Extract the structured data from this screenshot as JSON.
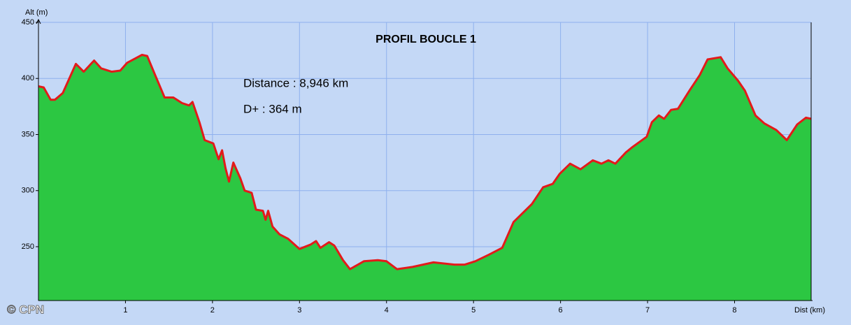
{
  "chart_data": {
    "type": "area",
    "title": "PROFIL BOUCLE 1",
    "y_label": "Alt (m)",
    "x_label": "Dist (km)",
    "annotations": [
      "Distance : 8,946 km",
      "D+ : 364 m"
    ],
    "watermark": "© CPN",
    "x": [
      0,
      0.06,
      0.14,
      0.19,
      0.28,
      0.43,
      0.52,
      0.64,
      0.72,
      0.84,
      0.94,
      1.02,
      1.19,
      1.25,
      1.33,
      1.45,
      1.55,
      1.65,
      1.73,
      1.77,
      1.85,
      1.91,
      2.01,
      2.07,
      2.11,
      2.15,
      2.19,
      2.24,
      2.32,
      2.37,
      2.45,
      2.5,
      2.58,
      2.61,
      2.64,
      2.69,
      2.77,
      2.87,
      3.0,
      3.13,
      3.19,
      3.24,
      3.34,
      3.4,
      3.5,
      3.58,
      3.74,
      3.9,
      4.0,
      4.12,
      4.3,
      4.54,
      4.78,
      4.9,
      5.02,
      5.18,
      5.33,
      5.46,
      5.67,
      5.8,
      5.91,
      5.99,
      6.11,
      6.23,
      6.37,
      6.47,
      6.55,
      6.63,
      6.75,
      6.83,
      6.99,
      7.05,
      7.13,
      7.19,
      7.27,
      7.35,
      7.48,
      7.6,
      7.69,
      7.84,
      7.92,
      8.04,
      8.12,
      8.24,
      8.34,
      8.48,
      8.6,
      8.72,
      8.82,
      8.88
    ],
    "values": [
      393,
      392,
      381,
      381,
      387,
      413,
      406,
      416,
      409,
      406,
      407,
      414,
      421,
      420,
      405,
      383,
      383,
      378,
      376,
      379,
      361,
      345,
      342,
      328,
      336,
      320,
      308,
      325,
      311,
      300,
      298,
      283,
      282,
      274,
      282,
      268,
      261,
      257,
      248,
      252,
      255,
      249,
      254,
      251,
      238,
      230,
      237,
      238,
      237,
      230,
      232,
      236,
      234,
      234,
      237,
      243,
      249,
      272,
      288,
      303,
      306,
      315,
      324,
      319,
      327,
      324,
      327,
      324,
      334,
      339,
      348,
      361,
      367,
      364,
      372,
      373,
      389,
      403,
      417,
      419,
      409,
      398,
      389,
      367,
      360,
      354,
      345,
      359,
      365,
      364
    ],
    "color": "#e31a1a",
    "fill_color": "#2cc742",
    "xlim": [
      0,
      8.88
    ],
    "ylim": [
      202,
      450
    ],
    "xticks": [
      1,
      2,
      3,
      4,
      5,
      6,
      7,
      8
    ],
    "yticks": [
      250,
      300,
      350,
      400,
      450
    ],
    "grid": true
  }
}
